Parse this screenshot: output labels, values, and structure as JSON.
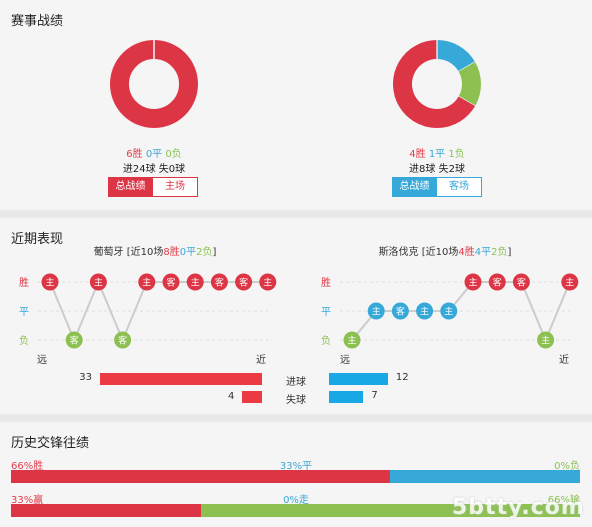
{
  "colors": {
    "win": "#dc3646",
    "draw": "#37a9d9",
    "loss": "#8cc152"
  },
  "section1": {
    "title": "赛事战绩",
    "left": {
      "donut": [
        6,
        0,
        0
      ],
      "win": "6胜",
      "draw": "0平",
      "loss": "0负",
      "goals": "进24球 失0球",
      "tab_all": "总战绩",
      "tab_home": "主场"
    },
    "right": {
      "donut": [
        4,
        1,
        1
      ],
      "win": "4胜",
      "draw": "1平",
      "loss": "1负",
      "goals": "进8球 失2球",
      "tab_all": "总战绩",
      "tab_away": "客场"
    }
  },
  "section2": {
    "title": "近期表现",
    "left_team": {
      "name": "葡萄牙",
      "prefix": "[近10场",
      "w": "8胜",
      "d": "0平",
      "l": "2负",
      "suffix": "]"
    },
    "right_team": {
      "name": "斯洛伐克",
      "prefix": "[近10场",
      "w": "4胜",
      "d": "4平",
      "l": "2负",
      "suffix": "]"
    },
    "row_labels": [
      "胜",
      "平",
      "负"
    ],
    "far_label": "远",
    "near_label": "近",
    "left_form": [
      {
        "r": "W",
        "v": "主"
      },
      {
        "r": "L",
        "v": "客"
      },
      {
        "r": "W",
        "v": "主"
      },
      {
        "r": "L",
        "v": "客"
      },
      {
        "r": "W",
        "v": "主"
      },
      {
        "r": "W",
        "v": "客"
      },
      {
        "r": "W",
        "v": "主"
      },
      {
        "r": "W",
        "v": "客"
      },
      {
        "r": "W",
        "v": "客"
      },
      {
        "r": "W",
        "v": "主"
      }
    ],
    "right_form": [
      {
        "r": "L",
        "v": "主"
      },
      {
        "r": "D",
        "v": "主"
      },
      {
        "r": "D",
        "v": "客"
      },
      {
        "r": "D",
        "v": "主"
      },
      {
        "r": "D",
        "v": "主"
      },
      {
        "r": "W",
        "v": "主"
      },
      {
        "r": "W",
        "v": "客"
      },
      {
        "r": "W",
        "v": "客"
      },
      {
        "r": "L",
        "v": "主"
      },
      {
        "r": "W",
        "v": "主"
      }
    ],
    "goals_label": "进球",
    "conceded_label": "失球",
    "left_goals": 33,
    "left_conceded": 4,
    "right_goals": 12,
    "right_conceded": 7
  },
  "section3": {
    "title": "历史交锋往绩",
    "row1": {
      "win_label": "66%胜",
      "draw_label": "33%平",
      "loss_label": "0%负",
      "win": 66,
      "draw": 33,
      "loss": 0
    },
    "row2": {
      "win_label": "33%赢",
      "draw_label": "0%走",
      "loss_label": "66%输",
      "win": 33,
      "draw": 0,
      "loss": 66
    }
  },
  "watermark": "5btty.com"
}
